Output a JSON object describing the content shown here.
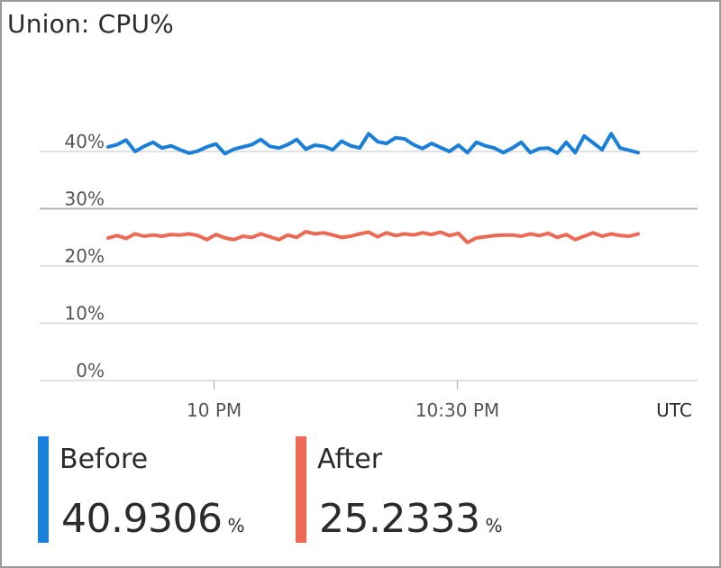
{
  "title": "Union: CPU%",
  "colors": {
    "before": "#1a7fd8",
    "after": "#ec6a54",
    "grid": "#cfcfcf",
    "grid_strong": "#b5b5b5",
    "axis_text": "#555555"
  },
  "chart_data": {
    "type": "line",
    "title": "Union: CPU%",
    "xlabel": "",
    "ylabel": "",
    "ylim": [
      0,
      50
    ],
    "yticks": [
      {
        "value": 0,
        "label": "0%"
      },
      {
        "value": 10,
        "label": "10%"
      },
      {
        "value": 20,
        "label": "20%"
      },
      {
        "value": 30,
        "label": "30%"
      },
      {
        "value": 40,
        "label": "40%"
      }
    ],
    "xticks": [
      {
        "label": "10 PM",
        "t": 0.2
      },
      {
        "label": "10:30 PM",
        "t": 0.659
      }
    ],
    "timezone_label": "UTC",
    "grid": true,
    "legend": "bottom",
    "series": [
      {
        "name": "Before",
        "key": "before",
        "values": [
          40.8,
          41.2,
          42.0,
          40.0,
          40.9,
          41.6,
          40.6,
          41.0,
          40.3,
          39.7,
          40.1,
          40.8,
          41.3,
          39.6,
          40.4,
          40.8,
          41.2,
          42.1,
          40.9,
          40.6,
          41.2,
          42.1,
          40.4,
          41.1,
          40.9,
          40.3,
          41.8,
          41.0,
          40.6,
          43.1,
          41.7,
          41.4,
          42.4,
          42.2,
          41.2,
          40.5,
          41.4,
          40.7,
          40.0,
          41.1,
          39.8,
          41.6,
          41.0,
          40.6,
          39.8,
          40.6,
          41.6,
          39.8,
          40.5,
          40.6,
          39.7,
          41.6,
          39.8,
          42.7,
          41.5,
          40.3,
          43.1,
          40.6,
          40.2,
          39.8
        ],
        "summary": "40.9306",
        "unit": "%"
      },
      {
        "name": "After",
        "key": "after",
        "values": [
          24.9,
          25.3,
          24.8,
          25.6,
          25.2,
          25.4,
          25.2,
          25.5,
          25.4,
          25.6,
          25.3,
          24.6,
          25.5,
          24.9,
          24.6,
          25.2,
          25.0,
          25.6,
          25.1,
          24.6,
          25.4,
          25.0,
          26.0,
          25.6,
          25.8,
          25.4,
          25.0,
          25.2,
          25.6,
          25.9,
          25.1,
          25.8,
          25.3,
          25.6,
          25.4,
          25.8,
          25.5,
          25.9,
          25.3,
          25.7,
          24.1,
          24.9,
          25.1,
          25.3,
          25.4,
          25.4,
          25.2,
          25.6,
          25.3,
          25.7,
          25.0,
          25.5,
          24.6,
          25.2,
          25.8,
          25.2,
          25.6,
          25.3,
          25.2,
          25.6
        ],
        "summary": "25.2333",
        "unit": "%"
      }
    ]
  }
}
